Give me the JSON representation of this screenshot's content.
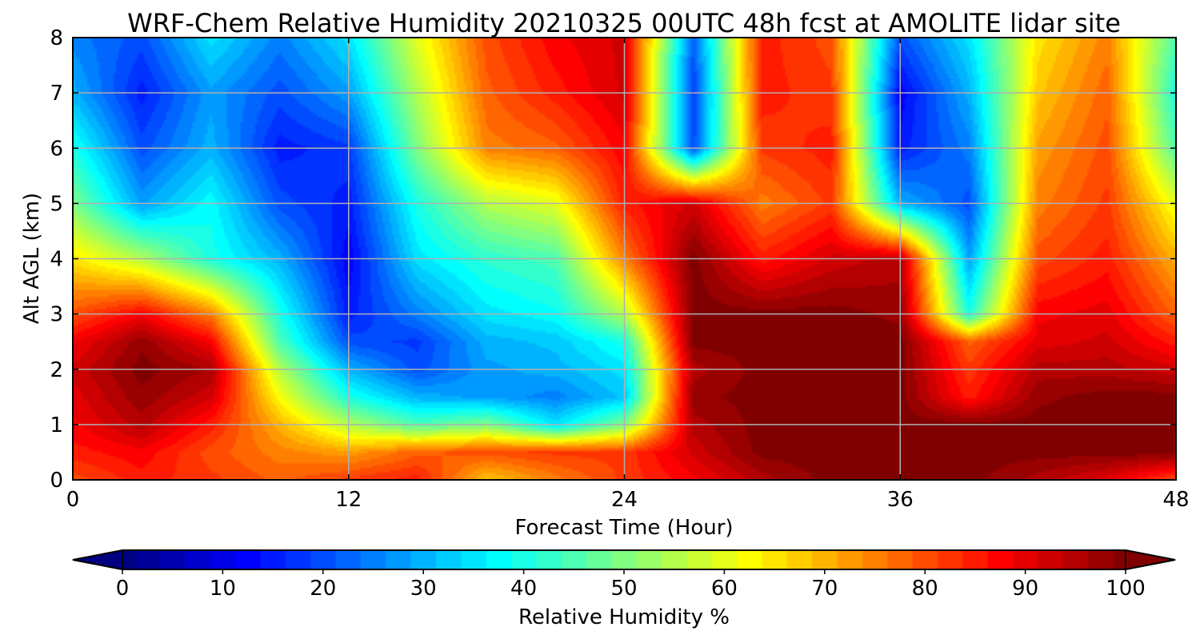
{
  "chart_data": {
    "type": "heatmap",
    "title": "WRF-Chem Relative Humidity 20210325 00UTC 48h fcst at AMOLITE lidar site",
    "xlabel": "Forecast Time (Hour)",
    "ylabel": "Alt AGL (km)",
    "xlim": [
      0,
      48
    ],
    "ylim": [
      0,
      8
    ],
    "xticks": [
      0,
      12,
      24,
      36,
      48
    ],
    "yticks": [
      0,
      1,
      2,
      3,
      4,
      5,
      6,
      7,
      8
    ],
    "grid": true,
    "colorbar": {
      "label": "Relative Humidity %",
      "ticks": [
        0,
        10,
        20,
        30,
        40,
        50,
        60,
        70,
        80,
        90,
        100
      ],
      "range": [
        0,
        100
      ],
      "extend": "both",
      "colormap": "jet"
    },
    "z_units": "%",
    "x": [
      0,
      3,
      6,
      9,
      12,
      15,
      18,
      21,
      24,
      27,
      30,
      33,
      36,
      39,
      42,
      45,
      48
    ],
    "y": [
      0,
      0.5,
      1,
      1.5,
      2,
      2.5,
      3,
      4,
      5,
      6,
      7,
      8
    ],
    "z": [
      [
        80,
        85,
        82,
        78,
        82,
        85,
        68,
        75,
        82,
        88,
        95,
        100,
        100,
        100,
        95,
        90,
        80
      ],
      [
        85,
        88,
        80,
        75,
        72,
        78,
        80,
        82,
        82,
        92,
        100,
        100,
        100,
        100,
        100,
        100,
        100
      ],
      [
        88,
        95,
        85,
        70,
        55,
        45,
        50,
        35,
        50,
        95,
        100,
        100,
        100,
        100,
        100,
        100,
        100
      ],
      [
        90,
        98,
        92,
        62,
        40,
        30,
        28,
        25,
        32,
        98,
        100,
        100,
        100,
        85,
        98,
        100,
        100
      ],
      [
        92,
        100,
        96,
        55,
        30,
        20,
        28,
        30,
        35,
        95,
        100,
        100,
        100,
        82,
        95,
        95,
        92
      ],
      [
        88,
        98,
        88,
        45,
        20,
        18,
        30,
        32,
        40,
        100,
        100,
        100,
        100,
        78,
        90,
        92,
        85
      ],
      [
        80,
        88,
        75,
        40,
        15,
        25,
        35,
        38,
        55,
        100,
        100,
        100,
        98,
        40,
        88,
        90,
        78
      ],
      [
        65,
        55,
        40,
        30,
        12,
        35,
        42,
        45,
        75,
        100,
        85,
        92,
        95,
        28,
        80,
        85,
        70
      ],
      [
        50,
        28,
        38,
        20,
        15,
        40,
        55,
        60,
        85,
        92,
        75,
        82,
        30,
        20,
        75,
        82,
        60
      ],
      [
        40,
        20,
        30,
        15,
        18,
        50,
        75,
        78,
        88,
        20,
        82,
        85,
        15,
        25,
        72,
        80,
        45
      ],
      [
        30,
        15,
        28,
        20,
        28,
        55,
        78,
        85,
        92,
        18,
        85,
        82,
        12,
        30,
        68,
        78,
        40
      ],
      [
        25,
        20,
        35,
        25,
        35,
        60,
        80,
        88,
        92,
        22,
        85,
        80,
        20,
        35,
        65,
        75,
        45
      ]
    ]
  }
}
